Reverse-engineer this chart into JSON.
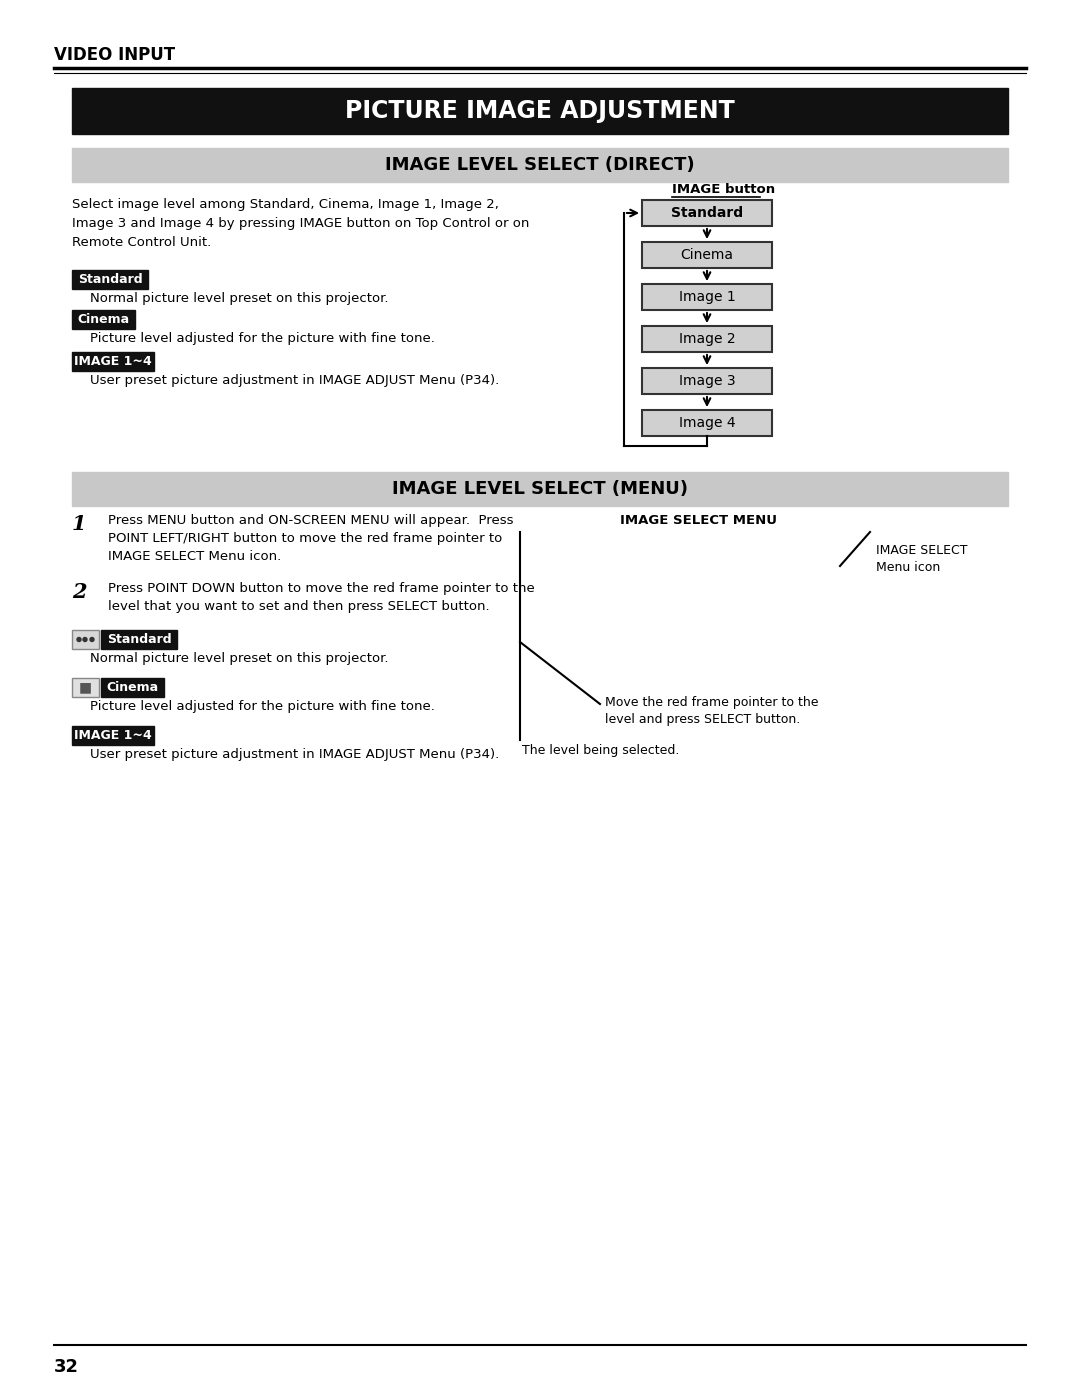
{
  "page_title": "VIDEO INPUT",
  "main_title": "PICTURE IMAGE ADJUSTMENT",
  "section1_title": "IMAGE LEVEL SELECT (DIRECT)",
  "section2_title": "IMAGE LEVEL SELECT (MENU)",
  "bg_color": "#ffffff",
  "page_number": "32",
  "select_direct_para": "Select image level among Standard, Cinema, Image 1, Image 2,\nImage 3 and Image 4 by pressing IMAGE button on Top Control or on\nRemote Control Unit.",
  "standard_label": "Standard",
  "standard_desc": "Normal picture level preset on this projector.",
  "cinema_label": "Cinema",
  "cinema_desc": "Picture level adjusted for the picture with fine tone.",
  "image14_label": "IMAGE 1~4",
  "image14_desc": "User preset picture adjustment in IMAGE ADJUST Menu (P34).",
  "flow_title": "IMAGE button",
  "flow_items": [
    "Standard",
    "Cinema",
    "Image 1",
    "Image 2",
    "Image 3",
    "Image 4"
  ],
  "menu_step1": "Press MENU button and ON-SCREEN MENU will appear.  Press\nPOINT LEFT/RIGHT button to move the red frame pointer to\nIMAGE SELECT Menu icon.",
  "menu_step2": "Press POINT DOWN button to move the red frame pointer to the\nlevel that you want to set and then press SELECT button.",
  "menu_standard_label": "Standard",
  "menu_standard_desc": "Normal picture level preset on this projector.",
  "menu_cinema_label": "Cinema",
  "menu_cinema_desc": "Picture level adjusted for the picture with fine tone.",
  "menu_image14_label": "IMAGE 1~4",
  "menu_image14_desc": "User preset picture adjustment in IMAGE ADJUST Menu (P34).",
  "image_select_menu_label": "IMAGE SELECT MENU",
  "image_select_icon_label": "IMAGE SELECT\nMenu icon",
  "red_frame_label": "Move the red frame pointer to the\nlevel and press SELECT button.",
  "level_selected_label": "The level being selected."
}
